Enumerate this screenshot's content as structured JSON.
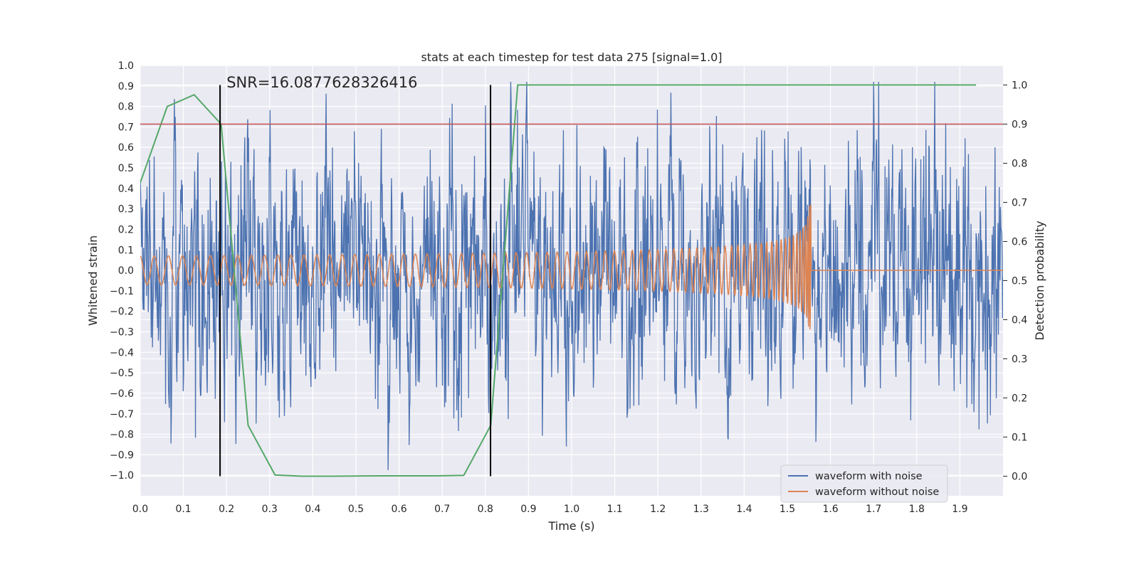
{
  "chart_data": {
    "type": "line",
    "title": "stats at each timestep for test data 275 [signal=1.0]",
    "xlabel": "Time (s)",
    "ylabel": "Whitened strain",
    "ylabel_right": "Detection probability",
    "xlim": [
      0.0,
      2.0
    ],
    "ylim": [
      -1.1,
      1.0
    ],
    "ylim_right": [
      -0.05,
      1.05
    ],
    "x_ticks": [
      "0.0",
      "0.1",
      "0.2",
      "0.3",
      "0.4",
      "0.5",
      "0.6",
      "0.7",
      "0.8",
      "0.9",
      "1.0",
      "1.1",
      "1.2",
      "1.3",
      "1.4",
      "1.5",
      "1.6",
      "1.7",
      "1.8",
      "1.9"
    ],
    "y_ticks": [
      "1.0",
      "0.9",
      "0.8",
      "0.7",
      "0.6",
      "0.5",
      "0.4",
      "0.3",
      "0.2",
      "0.1",
      "0.0",
      "−0.1",
      "−0.2",
      "−0.3",
      "−0.4",
      "−0.5",
      "−0.6",
      "−0.7",
      "−0.8",
      "−0.9",
      "−1.0"
    ],
    "y_ticks_right": [
      "1.0",
      "0.9",
      "0.8",
      "0.7",
      "0.6",
      "0.5",
      "0.4",
      "0.3",
      "0.2",
      "0.1",
      "0.0"
    ],
    "annotation": "SNR=16.0877628326416",
    "grid": true,
    "legend_position": "bottom-right",
    "threshold": 0.9,
    "vlines_x": [
      0.185,
      0.812
    ],
    "series": [
      {
        "name": "waveform with noise",
        "color": "#4c72b0",
        "generated": "dense noise, std ≈ 0.27, range ≈ [-1.0, 0.92], x ∈ [0, 2]"
      },
      {
        "name": "waveform without noise",
        "color": "#dd8452",
        "generated": "chirp, amplitude 0.07 → 0.6, ends at x ≈ 1.555, then 0"
      },
      {
        "name": "",
        "color": "#55a868",
        "axis": "right",
        "x": [
          0.0,
          0.0625,
          0.125,
          0.1875,
          0.25,
          0.3125,
          0.375,
          0.4375,
          0.5,
          0.5625,
          0.625,
          0.6875,
          0.75,
          0.8125,
          0.875,
          0.9375,
          1.0,
          1.0625,
          1.125,
          1.1875,
          1.25,
          1.3125,
          1.375,
          1.4375,
          1.5,
          1.5625,
          1.625,
          1.6875,
          1.75,
          1.8125,
          1.875,
          1.9375
        ],
        "y": [
          0.75,
          0.945,
          0.975,
          0.9,
          0.13,
          0.003,
          0.0,
          0.0,
          0.0005,
          0.001,
          0.001,
          0.001,
          0.002,
          0.13,
          1.0,
          1.0,
          1.0,
          1.0,
          1.0,
          1.0,
          1.0,
          1.0,
          1.0,
          1.0,
          1.0,
          1.0,
          1.0,
          1.0,
          1.0,
          1.0,
          1.0,
          1.0
        ]
      }
    ]
  },
  "colors": {
    "plot_bg": "#eaeaf2",
    "grid": "#ffffff",
    "threshold": "#c44e52",
    "vline": "#000000"
  }
}
